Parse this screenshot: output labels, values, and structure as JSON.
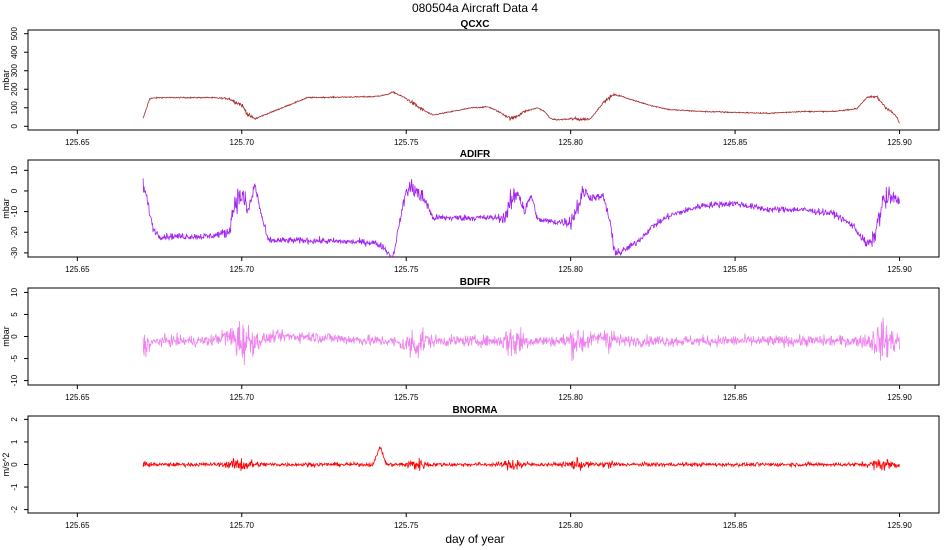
{
  "figure": {
    "title": "080504a   Aircraft Data 4",
    "xlabel": "day of year"
  },
  "chart_data": [
    {
      "type": "line",
      "title": "QCXC",
      "ylabel": "mbar",
      "color": "#a52a2a",
      "xlim": [
        125.635,
        125.912
      ],
      "ylim": [
        -20,
        520
      ],
      "xticks": [
        125.65,
        125.7,
        125.75,
        125.8,
        125.85,
        125.9
      ],
      "yticks": [
        0,
        100,
        200,
        300,
        400,
        500
      ],
      "noise": 3,
      "series": [
        {
          "x": [
            125.67,
            125.672,
            125.675,
            125.69,
            125.696,
            125.7,
            125.702,
            125.704,
            125.706,
            125.72,
            125.74,
            125.744,
            125.746,
            125.75,
            125.754,
            125.758,
            125.77,
            125.775,
            125.778,
            125.782,
            125.786,
            125.79,
            125.792,
            125.794,
            125.796,
            125.8,
            125.804,
            125.806,
            125.81,
            125.813,
            125.815,
            125.82,
            125.825,
            125.83,
            125.84,
            125.85,
            125.86,
            125.87,
            125.88,
            125.887,
            125.89,
            125.893,
            125.896,
            125.899,
            125.9
          ],
          "y": [
            40,
            150,
            155,
            155,
            150,
            115,
            60,
            40,
            55,
            155,
            160,
            170,
            185,
            150,
            100,
            60,
            100,
            105,
            80,
            40,
            80,
            100,
            80,
            40,
            35,
            40,
            38,
            40,
            130,
            170,
            165,
            135,
            110,
            90,
            80,
            75,
            70,
            80,
            80,
            95,
            155,
            160,
            100,
            55,
            15
          ]
        }
      ]
    },
    {
      "type": "line",
      "title": "ADIFR",
      "ylabel": "mbar",
      "color": "#a020f0",
      "xlim": [
        125.635,
        125.912
      ],
      "ylim": [
        -32,
        15
      ],
      "xticks": [
        125.65,
        125.7,
        125.75,
        125.8,
        125.85,
        125.9
      ],
      "yticks": [
        -30,
        -20,
        -10,
        0,
        10
      ],
      "noise": 1.5,
      "series": [
        {
          "x": [
            125.67,
            125.671,
            125.673,
            125.675,
            125.68,
            125.69,
            125.696,
            125.698,
            125.7,
            125.702,
            125.704,
            125.706,
            125.708,
            125.72,
            125.74,
            125.743,
            125.745,
            125.746,
            125.748,
            125.75,
            125.752,
            125.754,
            125.756,
            125.758,
            125.77,
            125.78,
            125.782,
            125.784,
            125.786,
            125.788,
            125.79,
            125.795,
            125.8,
            125.802,
            125.804,
            125.806,
            125.81,
            125.812,
            125.813,
            125.815,
            125.82,
            125.825,
            125.83,
            125.84,
            125.85,
            125.86,
            125.87,
            125.88,
            125.886,
            125.89,
            125.892,
            125.895,
            125.897,
            125.9
          ],
          "y": [
            3,
            -3,
            -18,
            -22,
            -22,
            -22,
            -20,
            -5,
            -2,
            -10,
            3,
            -12,
            -24,
            -24,
            -25,
            -27,
            -31,
            -32,
            -15,
            0,
            2,
            -2,
            -5,
            -13,
            -13,
            -13,
            -5,
            0,
            -10,
            -2,
            -14,
            -15,
            -15,
            -8,
            0,
            -3,
            -3,
            -15,
            -28,
            -30,
            -25,
            -17,
            -12,
            -7,
            -6,
            -9,
            -9,
            -11,
            -17,
            -26,
            -24,
            -5,
            -3,
            -5
          ]
        }
      ]
    },
    {
      "type": "line",
      "title": "BDIFR",
      "ylabel": "mbar",
      "color": "#ee82ee",
      "xlim": [
        125.635,
        125.912
      ],
      "ylim": [
        -11,
        11
      ],
      "xticks": [
        125.65,
        125.7,
        125.75,
        125.8,
        125.85,
        125.9
      ],
      "yticks": [
        -10,
        -5,
        0,
        5,
        10
      ],
      "noise": 1.2,
      "series": [
        {
          "x": [
            125.67,
            125.675,
            125.68,
            125.69,
            125.695,
            125.7,
            125.705,
            125.71,
            125.72,
            125.74,
            125.745,
            125.75,
            125.755,
            125.76,
            125.77,
            125.78,
            125.785,
            125.79,
            125.8,
            125.805,
            125.81,
            125.815,
            125.82,
            125.84,
            125.86,
            125.88,
            125.89,
            125.895,
            125.9
          ],
          "y": [
            -2,
            -1,
            -1,
            -1,
            0,
            -1,
            -1,
            0,
            0,
            -1,
            -1,
            -2,
            -1,
            -1,
            -1,
            -1,
            -1,
            -1,
            -1,
            -1,
            0,
            -1,
            -1,
            -1,
            -1,
            -1,
            -1,
            -1,
            -1
          ]
        }
      ]
    },
    {
      "type": "line",
      "title": "BNORMA",
      "ylabel": "m/s^2",
      "color": "#ff0000",
      "xlim": [
        125.635,
        125.912
      ],
      "ylim": [
        -2.15,
        2.15
      ],
      "xticks": [
        125.65,
        125.7,
        125.75,
        125.8,
        125.85,
        125.9
      ],
      "yticks": [
        -2,
        -1,
        0,
        1,
        2
      ],
      "noise": 0.08,
      "series": [
        {
          "x": [
            125.67,
            125.68,
            125.69,
            125.7,
            125.71,
            125.72,
            125.74,
            125.742,
            125.744,
            125.75,
            125.76,
            125.78,
            125.79,
            125.8,
            125.82,
            125.86,
            125.88,
            125.89,
            125.9
          ],
          "y": [
            0,
            0,
            0,
            0,
            0,
            0,
            0,
            0.8,
            0,
            0,
            0,
            0,
            0,
            0,
            0,
            0,
            0,
            0,
            0
          ]
        }
      ]
    }
  ]
}
